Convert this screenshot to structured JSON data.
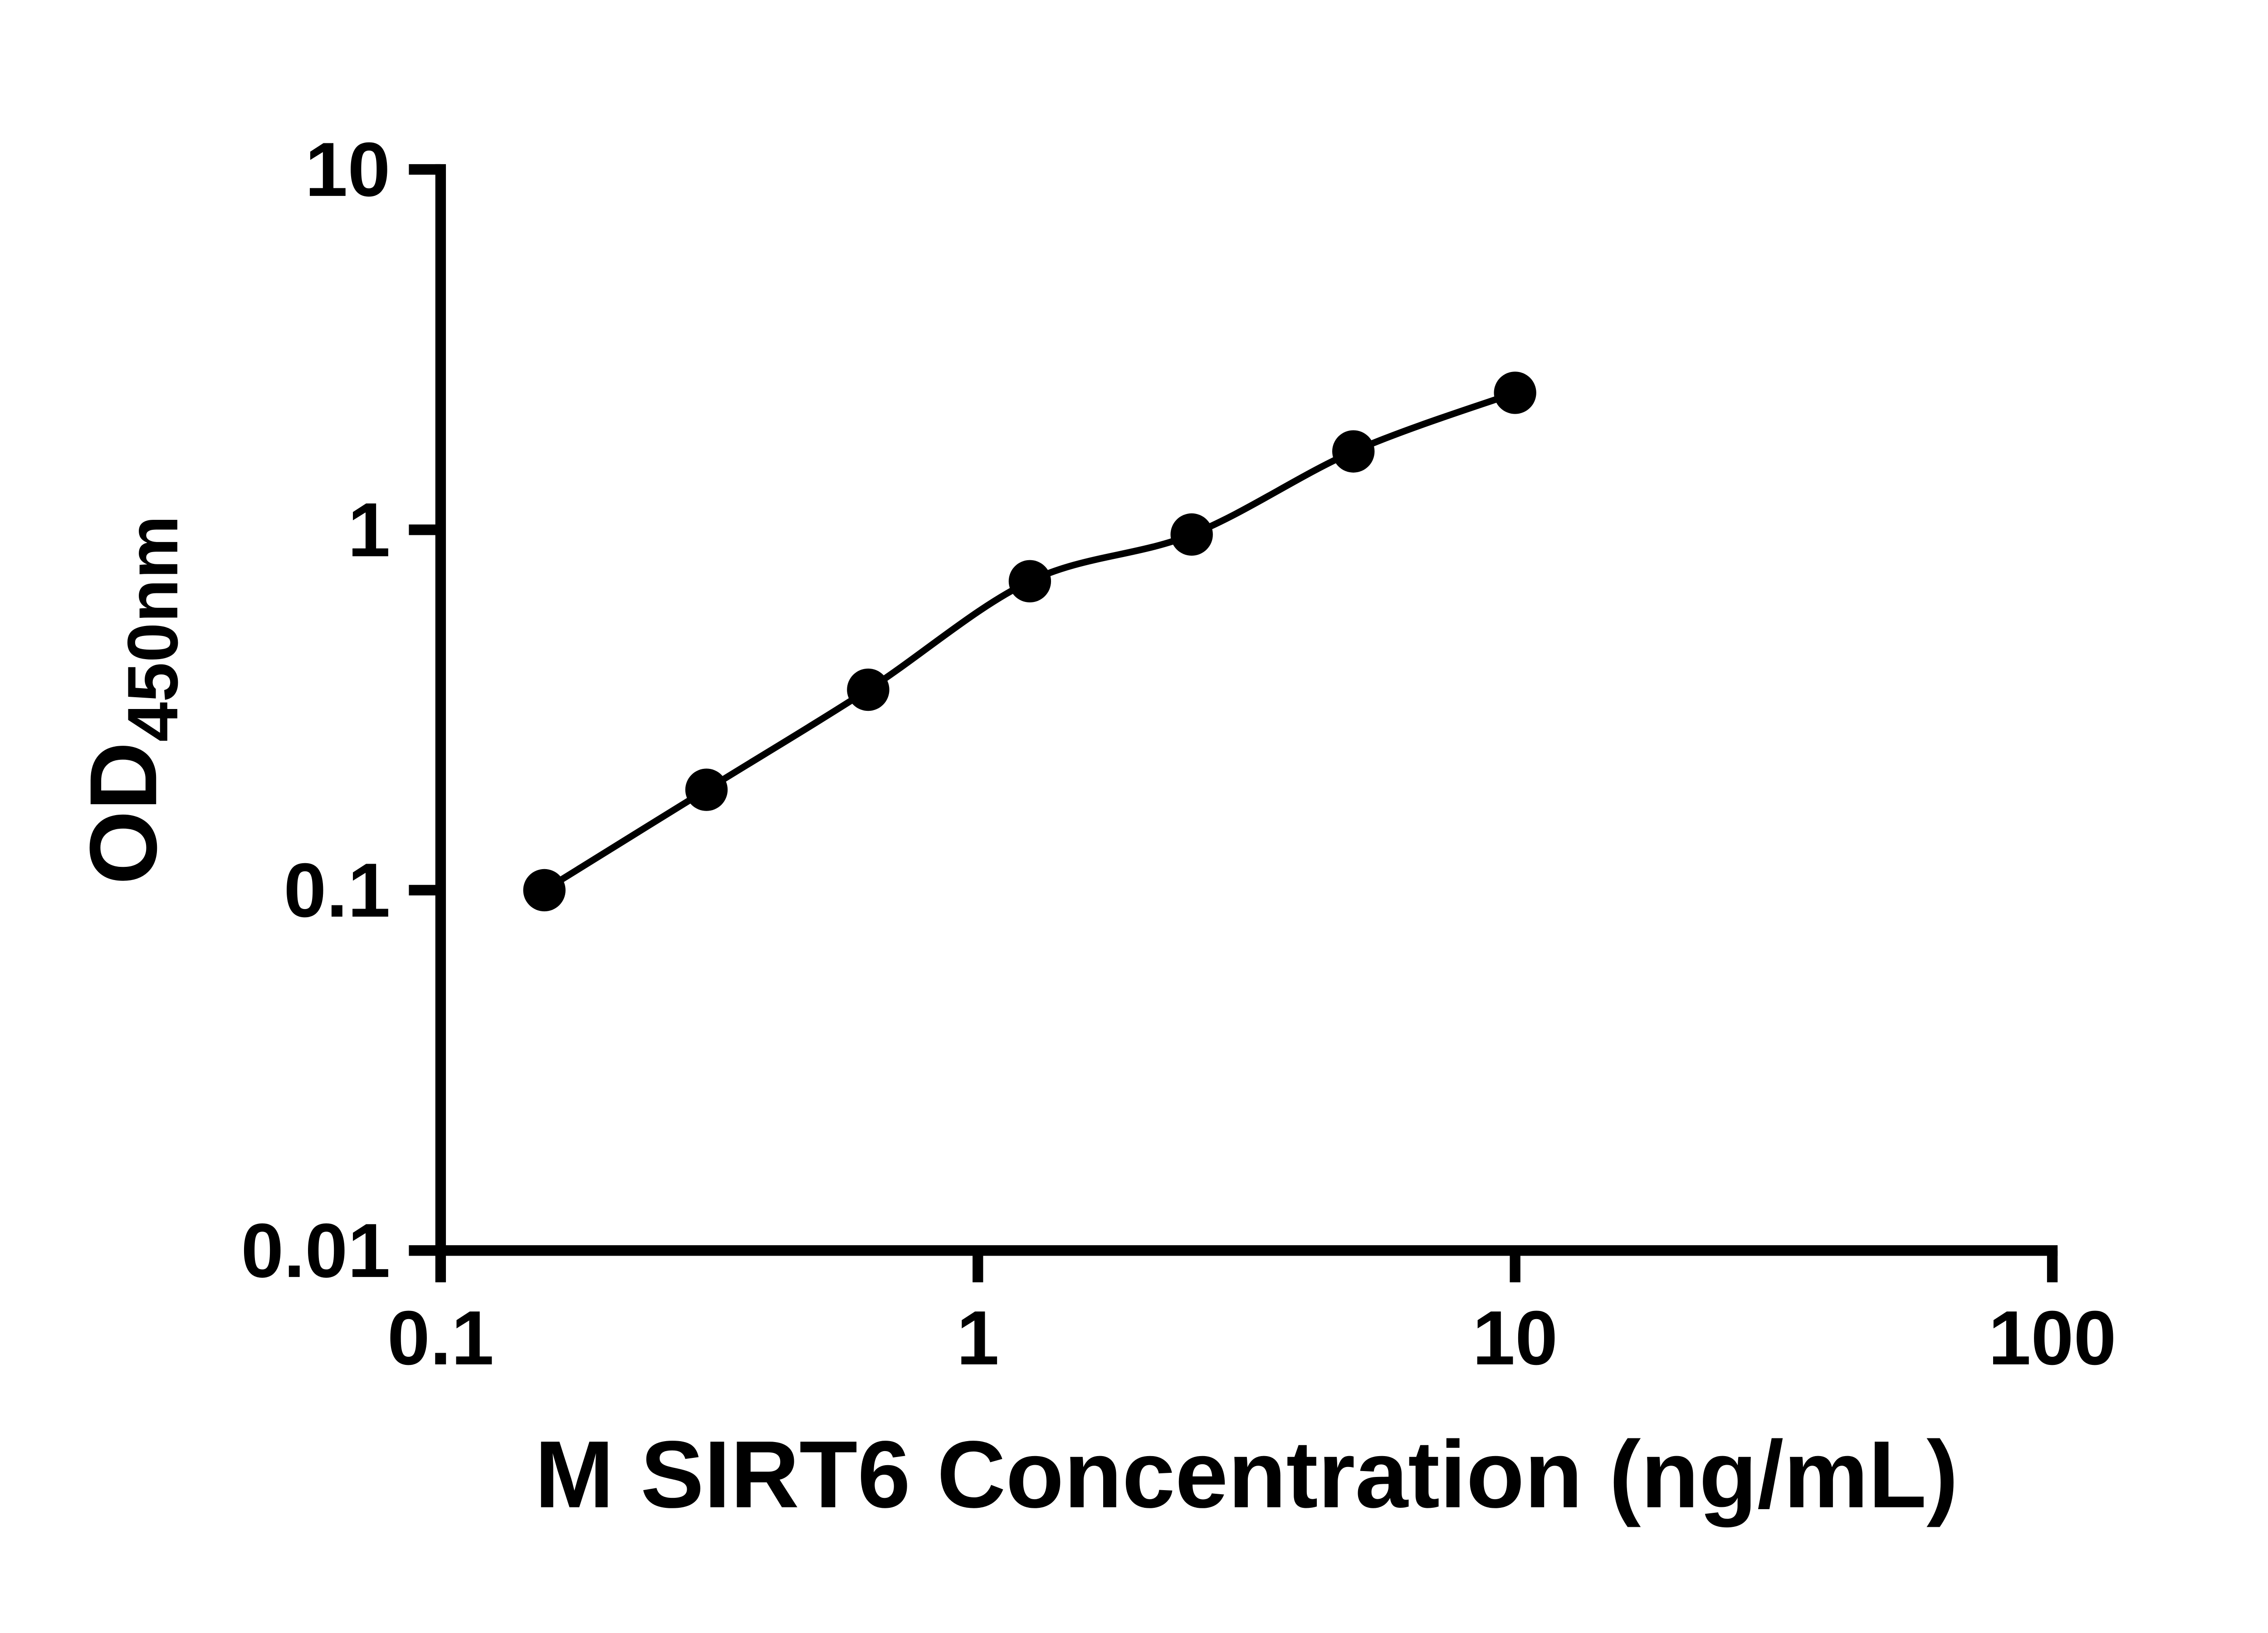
{
  "page": {
    "background_color": "#ffffff",
    "foreground_color": "#000000"
  },
  "chart_data": {
    "type": "scatter",
    "title": "",
    "xlabel": "M SIRT6 Concentration (ng/mL)",
    "ylabel": "OD450nm",
    "ylabel_main": "OD",
    "ylabel_sub": "450nm",
    "xscale": "log",
    "yscale": "log",
    "xlim": [
      0.1,
      100
    ],
    "ylim": [
      0.01,
      10
    ],
    "grid": false,
    "legend": false,
    "x_ticks": [
      {
        "value": 0.1,
        "label": "0.1"
      },
      {
        "value": 1,
        "label": "1"
      },
      {
        "value": 10,
        "label": "10"
      },
      {
        "value": 100,
        "label": "100"
      }
    ],
    "y_ticks": [
      {
        "value": 0.01,
        "label": "0.01"
      },
      {
        "value": 0.1,
        "label": "0.1"
      },
      {
        "value": 1,
        "label": "1"
      },
      {
        "value": 10,
        "label": "10"
      }
    ],
    "series": [
      {
        "marker": "filled-circle",
        "marker_color": "#000000",
        "line_color": "#000000",
        "curve": "smooth-fit",
        "x": [
          0.156,
          0.3125,
          0.625,
          1.25,
          2.5,
          5,
          10
        ],
        "y": [
          0.1,
          0.19,
          0.36,
          0.72,
          0.97,
          1.65,
          2.4
        ]
      }
    ]
  }
}
